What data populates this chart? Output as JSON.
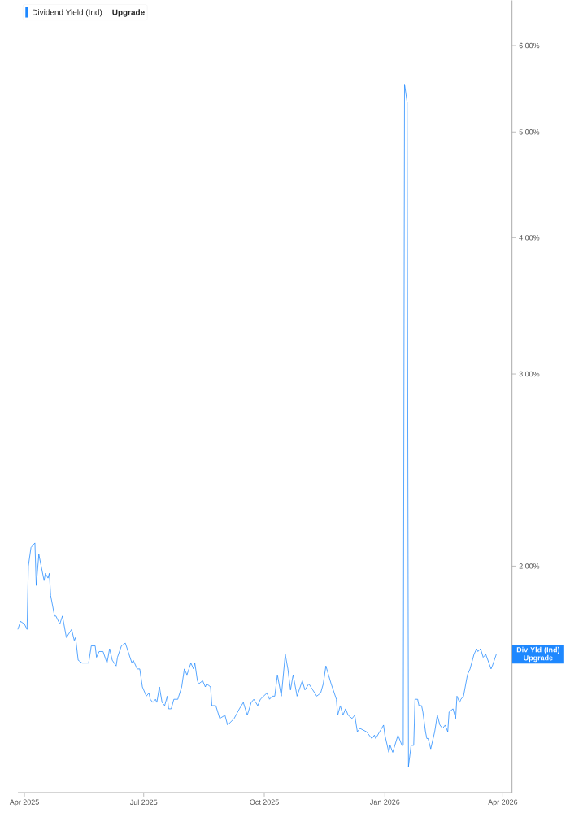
{
  "chart_data": {
    "type": "line",
    "x": [
      "2025-03-27",
      "2025-03-29",
      "2025-04-01",
      "2025-04-03",
      "2025-04-04",
      "2025-04-06",
      "2025-04-09",
      "2025-04-10",
      "2025-04-12",
      "2025-04-16",
      "2025-04-17",
      "2025-04-19",
      "2025-04-20",
      "2025-04-21",
      "2025-04-24",
      "2025-04-25",
      "2025-04-28",
      "2025-04-30",
      "2025-05-03",
      "2025-05-07",
      "2025-05-09",
      "2025-05-10",
      "2025-05-12",
      "2025-05-15",
      "2025-05-20",
      "2025-05-22",
      "2025-05-25",
      "2025-05-26",
      "2025-05-28",
      "2025-05-31",
      "2025-06-03",
      "2025-06-05",
      "2025-06-07",
      "2025-06-10",
      "2025-06-11",
      "2025-06-14",
      "2025-06-17",
      "2025-06-22",
      "2025-06-23",
      "2025-06-26",
      "2025-06-28",
      "2025-06-30",
      "2025-07-03",
      "2025-07-05",
      "2025-07-06",
      "2025-07-08",
      "2025-07-10",
      "2025-07-11",
      "2025-07-13",
      "2025-07-15",
      "2025-07-17",
      "2025-07-19",
      "2025-07-20",
      "2025-07-22",
      "2025-07-24",
      "2025-07-27",
      "2025-07-30",
      "2025-08-01",
      "2025-08-03",
      "2025-08-06",
      "2025-08-08",
      "2025-08-09",
      "2025-08-11",
      "2025-08-12",
      "2025-08-15",
      "2025-08-17",
      "2025-08-18",
      "2025-08-21",
      "2025-08-22",
      "2025-08-25",
      "2025-08-28",
      "2025-09-01",
      "2025-09-03",
      "2025-09-08",
      "2025-09-12",
      "2025-09-15",
      "2025-09-18",
      "2025-09-21",
      "2025-09-23",
      "2025-09-26",
      "2025-09-28",
      "2025-10-03",
      "2025-10-05",
      "2025-10-07",
      "2025-10-09",
      "2025-10-11",
      "2025-10-14",
      "2025-10-17",
      "2025-10-19",
      "2025-10-21",
      "2025-10-23",
      "2025-10-26",
      "2025-10-30",
      "2025-11-01",
      "2025-11-04",
      "2025-11-07",
      "2025-11-10",
      "2025-11-13",
      "2025-11-15",
      "2025-11-17",
      "2025-11-21",
      "2025-11-25",
      "2025-11-26",
      "2025-11-28",
      "2025-11-30",
      "2025-12-02",
      "2025-12-04",
      "2025-12-07",
      "2025-12-09",
      "2025-12-11",
      "2025-12-13",
      "2025-12-18",
      "2025-12-22",
      "2025-12-24",
      "2025-12-25",
      "2025-12-28",
      "2025-12-31",
      "2026-01-01",
      "2026-01-04",
      "2026-01-05",
      "2026-01-07",
      "2026-01-11",
      "2026-01-14",
      "2026-01-15",
      "2026-01-16",
      "2026-01-18",
      "2026-01-19",
      "2026-01-21",
      "2026-01-23",
      "2026-01-24",
      "2026-01-26",
      "2026-01-27",
      "2026-01-29",
      "2026-01-30",
      "2026-02-01",
      "2026-02-02",
      "2026-02-03",
      "2026-02-05",
      "2026-02-08",
      "2026-02-10",
      "2026-02-12",
      "2026-02-14",
      "2026-02-16",
      "2026-02-18",
      "2026-02-19",
      "2026-02-22",
      "2026-02-24",
      "2026-02-25",
      "2026-02-27",
      "2026-02-28",
      "2026-03-02",
      "2026-03-05",
      "2026-03-07",
      "2026-03-10",
      "2026-03-12",
      "2026-03-13",
      "2026-03-15",
      "2026-03-17",
      "2026-03-19",
      "2026-03-23",
      "2026-03-24",
      "2026-03-27"
    ],
    "series": [
      {
        "name": "Dividend Yield (Ind)",
        "color": "#1e88ff",
        "values": [
          1.75,
          1.78,
          1.77,
          1.75,
          2.0,
          2.08,
          2.1,
          1.92,
          2.05,
          1.94,
          1.97,
          1.95,
          1.97,
          1.88,
          1.8,
          1.8,
          1.77,
          1.8,
          1.72,
          1.75,
          1.71,
          1.72,
          1.64,
          1.63,
          1.63,
          1.69,
          1.69,
          1.65,
          1.67,
          1.67,
          1.63,
          1.68,
          1.64,
          1.62,
          1.65,
          1.69,
          1.7,
          1.63,
          1.64,
          1.61,
          1.61,
          1.55,
          1.52,
          1.53,
          1.51,
          1.5,
          1.51,
          1.5,
          1.55,
          1.5,
          1.49,
          1.52,
          1.48,
          1.48,
          1.51,
          1.51,
          1.55,
          1.61,
          1.59,
          1.63,
          1.61,
          1.63,
          1.57,
          1.56,
          1.57,
          1.55,
          1.56,
          1.55,
          1.49,
          1.49,
          1.45,
          1.46,
          1.43,
          1.45,
          1.48,
          1.5,
          1.46,
          1.5,
          1.51,
          1.49,
          1.51,
          1.53,
          1.51,
          1.52,
          1.52,
          1.59,
          1.52,
          1.66,
          1.61,
          1.54,
          1.59,
          1.52,
          1.57,
          1.54,
          1.56,
          1.54,
          1.52,
          1.53,
          1.56,
          1.62,
          1.56,
          1.51,
          1.46,
          1.49,
          1.46,
          1.48,
          1.46,
          1.45,
          1.46,
          1.41,
          1.42,
          1.41,
          1.39,
          1.4,
          1.39,
          1.41,
          1.43,
          1.4,
          1.35,
          1.37,
          1.35,
          1.4,
          1.37,
          1.37,
          5.53,
          5.32,
          1.31,
          1.37,
          1.37,
          1.51,
          1.51,
          1.49,
          1.49,
          1.47,
          1.41,
          1.39,
          1.39,
          1.36,
          1.41,
          1.46,
          1.43,
          1.42,
          1.43,
          1.41,
          1.47,
          1.48,
          1.45,
          1.52,
          1.5,
          1.51,
          1.52,
          1.59,
          1.61,
          1.66,
          1.68,
          1.67,
          1.68,
          1.65,
          1.66,
          1.61,
          1.62,
          1.66
        ]
      }
    ],
    "log": "y",
    "xlim": [
      "2025-03-27",
      "2026-04-08"
    ],
    "xticks": [
      {
        "value": "2025-04-01",
        "label": "Apr 2025"
      },
      {
        "value": "2025-07-01",
        "label": "Jul 2025"
      },
      {
        "value": "2025-10-01",
        "label": "Oct 2025"
      },
      {
        "value": "2026-01-01",
        "label": "Jan 2026"
      },
      {
        "value": "2026-04-01",
        "label": "Apr 2026"
      }
    ],
    "ylim": [
      1.24,
      6.6
    ],
    "yticks": [
      {
        "value": 2,
        "label": "2.00%"
      },
      {
        "value": 3,
        "label": "3.00%"
      },
      {
        "value": 4,
        "label": "4.00%"
      },
      {
        "value": 5,
        "label": "5.00%"
      },
      {
        "value": 6,
        "label": "6.00%"
      }
    ],
    "legend": "top left",
    "marker": "none",
    "line_style": "solid",
    "grid": false,
    "annotations": [
      {
        "text": "Div Yld (Ind) Upgrade",
        "x": "2026-03-27",
        "y": 1.66
      },
      "Upgrade"
    ]
  }
}
